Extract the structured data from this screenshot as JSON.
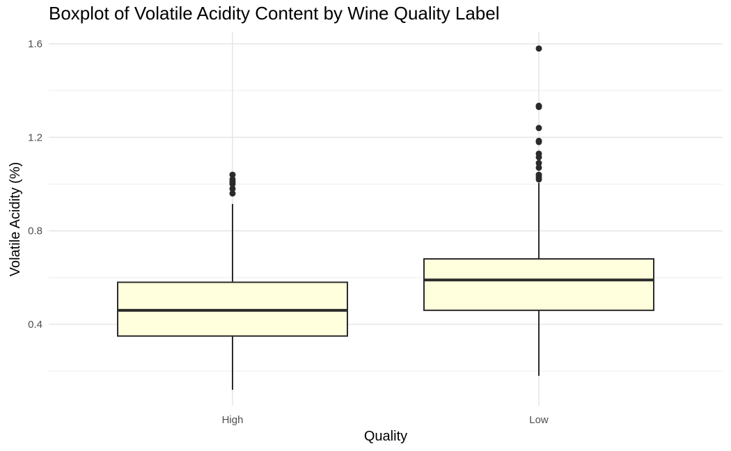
{
  "chart_data": {
    "type": "boxplot",
    "title": "Boxplot of Volatile Acidity Content by Wine Quality Label",
    "xlabel": "Quality",
    "ylabel": "Volatile Acidity (%)",
    "ylim": [
      0.12,
      1.65
    ],
    "yticks": [
      0.4,
      0.8,
      1.2,
      1.6
    ],
    "ytick_labels": [
      "0.4",
      "0.8",
      "1.2",
      "1.6"
    ],
    "grid": true,
    "categories": [
      "High",
      "Low"
    ],
    "fill_color": "#ffffdd",
    "line_color": "#2b2b2b",
    "boxes": [
      {
        "category": "High",
        "whisker_low": 0.12,
        "q1": 0.35,
        "median": 0.46,
        "q3": 0.58,
        "whisker_high": 0.915,
        "outliers": [
          0.96,
          0.98,
          1.0,
          1.01,
          1.02,
          1.04
        ]
      },
      {
        "category": "Low",
        "whisker_low": 0.18,
        "q1": 0.46,
        "median": 0.59,
        "q3": 0.68,
        "whisker_high": 1.005,
        "outliers": [
          1.02,
          1.03,
          1.04,
          1.07,
          1.09,
          1.115,
          1.13,
          1.18,
          1.185,
          1.24,
          1.33,
          1.335,
          1.58
        ]
      }
    ]
  }
}
